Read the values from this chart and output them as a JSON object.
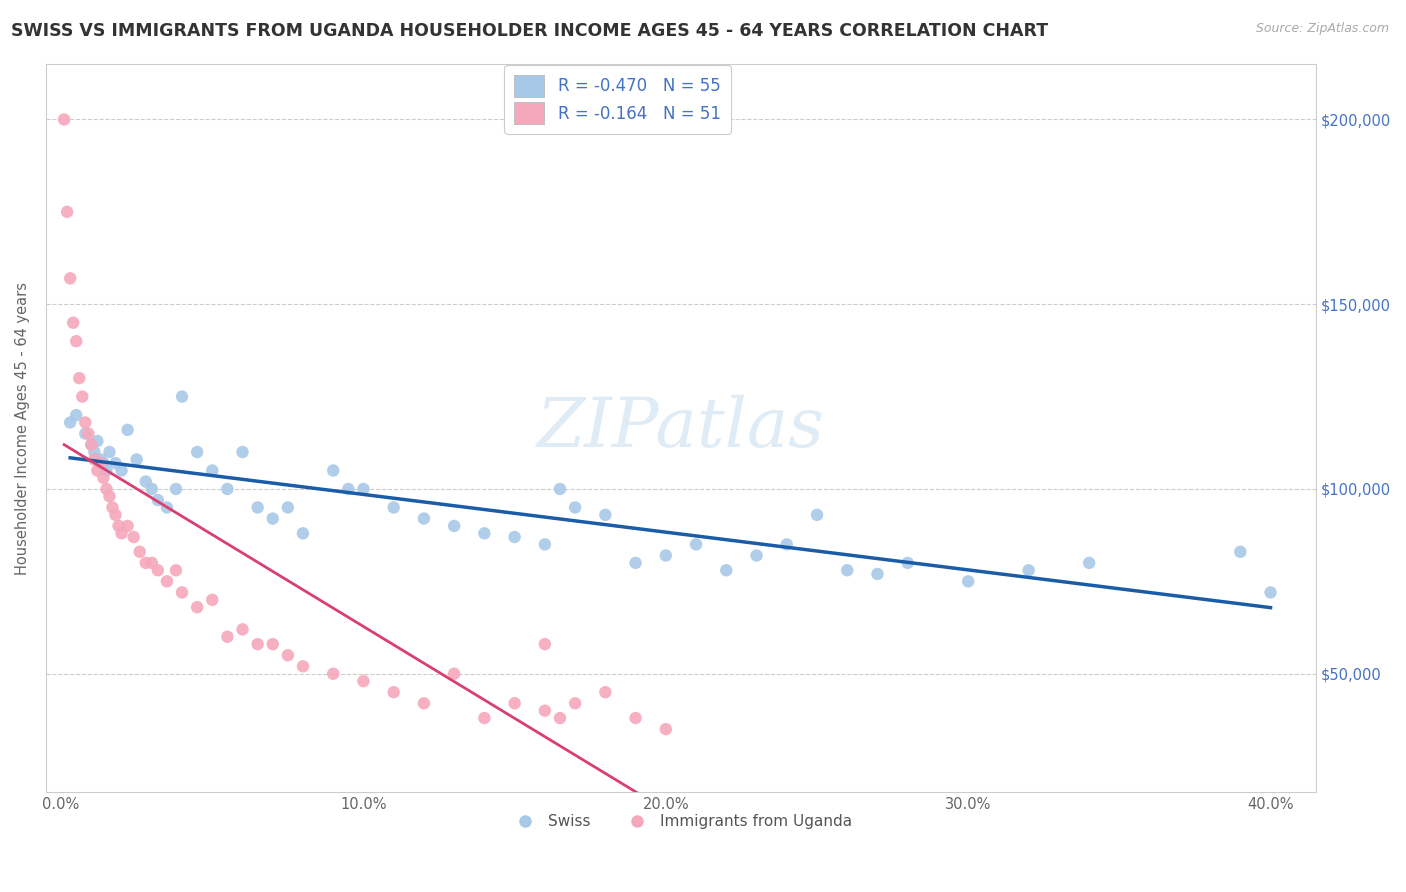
{
  "title": "SWISS VS IMMIGRANTS FROM UGANDA HOUSEHOLDER INCOME AGES 45 - 64 YEARS CORRELATION CHART",
  "source": "Source: ZipAtlas.com",
  "ylabel": "Householder Income Ages 45 - 64 years",
  "xlabel_ticks": [
    "0.0%",
    "10.0%",
    "20.0%",
    "30.0%",
    "40.0%"
  ],
  "xlabel_vals": [
    0.0,
    0.1,
    0.2,
    0.3,
    0.4
  ],
  "ylabel_ticks": [
    "$50,000",
    "$100,000",
    "$150,000",
    "$200,000"
  ],
  "ylabel_vals": [
    50000,
    100000,
    150000,
    200000
  ],
  "xlim": [
    -0.005,
    0.415
  ],
  "ylim": [
    18000,
    215000
  ],
  "swiss_R": -0.47,
  "swiss_N": 55,
  "uganda_R": -0.164,
  "uganda_N": 51,
  "swiss_color": "#a8c8e8",
  "swiss_line_color": "#1a5ca8",
  "uganda_color": "#f5a8bc",
  "uganda_line_color": "#d94070",
  "watermark": "ZIPatlas",
  "swiss_x": [
    0.003,
    0.005,
    0.008,
    0.01,
    0.011,
    0.012,
    0.013,
    0.014,
    0.015,
    0.016,
    0.018,
    0.02,
    0.022,
    0.025,
    0.028,
    0.03,
    0.032,
    0.035,
    0.038,
    0.04,
    0.045,
    0.05,
    0.055,
    0.06,
    0.065,
    0.07,
    0.075,
    0.08,
    0.09,
    0.095,
    0.1,
    0.11,
    0.12,
    0.13,
    0.14,
    0.15,
    0.16,
    0.165,
    0.17,
    0.18,
    0.19,
    0.2,
    0.21,
    0.22,
    0.23,
    0.24,
    0.25,
    0.26,
    0.27,
    0.28,
    0.3,
    0.32,
    0.34,
    0.39,
    0.4
  ],
  "swiss_y": [
    118000,
    120000,
    115000,
    112000,
    110000,
    113000,
    108000,
    107000,
    105000,
    110000,
    107000,
    105000,
    116000,
    108000,
    102000,
    100000,
    97000,
    95000,
    100000,
    125000,
    110000,
    105000,
    100000,
    110000,
    95000,
    92000,
    95000,
    88000,
    105000,
    100000,
    100000,
    95000,
    92000,
    90000,
    88000,
    87000,
    85000,
    100000,
    95000,
    93000,
    80000,
    82000,
    85000,
    78000,
    82000,
    85000,
    93000,
    78000,
    77000,
    80000,
    75000,
    78000,
    80000,
    83000,
    72000
  ],
  "uganda_x": [
    0.001,
    0.002,
    0.003,
    0.004,
    0.005,
    0.006,
    0.007,
    0.008,
    0.009,
    0.01,
    0.011,
    0.012,
    0.013,
    0.014,
    0.015,
    0.016,
    0.017,
    0.018,
    0.019,
    0.02,
    0.022,
    0.024,
    0.026,
    0.028,
    0.03,
    0.032,
    0.035,
    0.038,
    0.04,
    0.045,
    0.05,
    0.055,
    0.06,
    0.065,
    0.07,
    0.075,
    0.08,
    0.09,
    0.1,
    0.11,
    0.12,
    0.13,
    0.14,
    0.15,
    0.16,
    0.165,
    0.17,
    0.18,
    0.19,
    0.2,
    0.16
  ],
  "uganda_y": [
    200000,
    175000,
    157000,
    145000,
    140000,
    130000,
    125000,
    118000,
    115000,
    112000,
    108000,
    105000,
    107000,
    103000,
    100000,
    98000,
    95000,
    93000,
    90000,
    88000,
    90000,
    87000,
    83000,
    80000,
    80000,
    78000,
    75000,
    78000,
    72000,
    68000,
    70000,
    60000,
    62000,
    58000,
    58000,
    55000,
    52000,
    50000,
    48000,
    45000,
    42000,
    50000,
    38000,
    42000,
    40000,
    38000,
    42000,
    45000,
    38000,
    35000,
    58000
  ],
  "legend_label_swiss": "R = -0.470   N = 55",
  "legend_label_uganda": "R = -0.164   N = 51"
}
